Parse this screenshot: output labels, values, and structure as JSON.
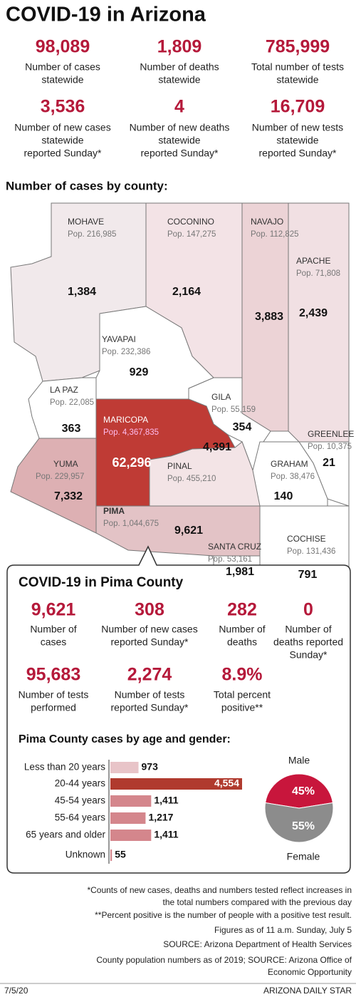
{
  "title": "COVID-19 in Arizona",
  "stats": [
    {
      "value": "98,089",
      "label": [
        "Number of cases",
        "statewide"
      ]
    },
    {
      "value": "1,809",
      "label": [
        "Number of deaths",
        "statewide"
      ]
    },
    {
      "value": "785,999",
      "label": [
        "Total number of tests",
        "statewide"
      ]
    },
    {
      "value": "3,536",
      "label": [
        "Number of new cases",
        "statewide",
        "reported Sunday*"
      ]
    },
    {
      "value": "4",
      "label": [
        "Number of new deaths",
        "statewide",
        "reported Sunday*"
      ]
    },
    {
      "value": "16,709",
      "label": [
        "Number of new tests",
        "statewide",
        "reported Sunday*"
      ]
    }
  ],
  "map": {
    "title": "Number of cases by county:",
    "counties": [
      {
        "name": "MOHAVE",
        "pop": "Pop. 216,985",
        "cases": "1,384"
      },
      {
        "name": "COCONINO",
        "pop": "Pop. 147,275",
        "cases": "2,164"
      },
      {
        "name": "NAVAJO",
        "pop": "Pop. 112,825",
        "cases": "3,883"
      },
      {
        "name": "APACHE",
        "pop": "Pop. 71,808",
        "cases": "2,439"
      },
      {
        "name": "YAVAPAI",
        "pop": "Pop. 232,386",
        "cases": "929"
      },
      {
        "name": "LA PAZ",
        "pop": "Pop. 22,085",
        "cases": "363"
      },
      {
        "name": "GILA",
        "pop": "Pop. 55,159",
        "cases": "354"
      },
      {
        "name": "MARICOPA",
        "pop": "Pop. 4,367,835",
        "cases": "62,296"
      },
      {
        "name": "GREENLEE",
        "pop": "Pop. 10,375",
        "cases": "21"
      },
      {
        "name": "YUMA",
        "pop": "Pop. 229,957",
        "cases": "7,332"
      },
      {
        "name": "PINAL",
        "pop": "Pop. 455,210",
        "cases": "4,391"
      },
      {
        "name": "GRAHAM",
        "pop": "Pop. 38,476",
        "cases": "140"
      },
      {
        "name": "PIMA",
        "pop": "Pop. 1,044,675",
        "cases": "9,621"
      },
      {
        "name": "COCHISE",
        "pop": "Pop. 131,436",
        "cases": "791"
      },
      {
        "name": "SANTA CRUZ",
        "pop": "Pop. 53,161",
        "cases": "1,981"
      }
    ]
  },
  "pima": {
    "title": "COVID-19 in Pima County",
    "stats": [
      {
        "value": "9,621",
        "label": [
          "Number of",
          "cases"
        ]
      },
      {
        "value": "308",
        "label": [
          "Number of new cases",
          "reported Sunday*"
        ]
      },
      {
        "value": "282",
        "label": [
          "Number of",
          "deaths"
        ]
      },
      {
        "value": "0",
        "label": [
          "Number of",
          "deaths reported",
          "Sunday*"
        ]
      },
      {
        "value": "95,683",
        "label": [
          "Number of tests",
          "performed"
        ]
      },
      {
        "value": "2,274",
        "label": [
          "Number of tests",
          "reported Sunday*"
        ]
      },
      {
        "value": "8.9%",
        "label": [
          "Total percent",
          "positive**"
        ]
      }
    ],
    "chart_title": "Pima County cases by age and gender:"
  },
  "chart_data": [
    {
      "type": "bar",
      "orientation": "horizontal",
      "categories": [
        "Less than 20 years",
        "20-44 years",
        "45-54 years",
        "55-64 years",
        "65 years and older",
        "Unknown"
      ],
      "values": [
        973,
        4554,
        1411,
        1217,
        1411,
        55
      ],
      "value_labels": [
        "973",
        "4,554",
        "1,411",
        "1,217",
        "1,411",
        "55"
      ],
      "colors": [
        "#e8c4c8",
        "#b03a2e",
        "#d4868c",
        "#d4868c",
        "#d4868c",
        "#d4868c"
      ]
    },
    {
      "type": "pie",
      "categories": [
        "Male",
        "Female"
      ],
      "values": [
        45,
        55
      ],
      "value_labels": [
        "45%",
        "55%"
      ],
      "colors": [
        "#c8163c",
        "#8c8c8c"
      ]
    }
  ],
  "footnotes": [
    "*Counts of new cases, deaths and numbers tested reflect increases in",
    "the total numbers compared with the previous day",
    "**Percent positive is the number of people with a positive test result.",
    "Figures as of 11 a.m. Sunday, July 5",
    "SOURCE: Arizona Department of Health Services",
    "County population numbers as of 2019; SOURCE: Arizona Office of",
    "Economic Opportunity"
  ],
  "footer": {
    "date": "7/5/20",
    "source": "ARIZONA DAILY STAR"
  }
}
